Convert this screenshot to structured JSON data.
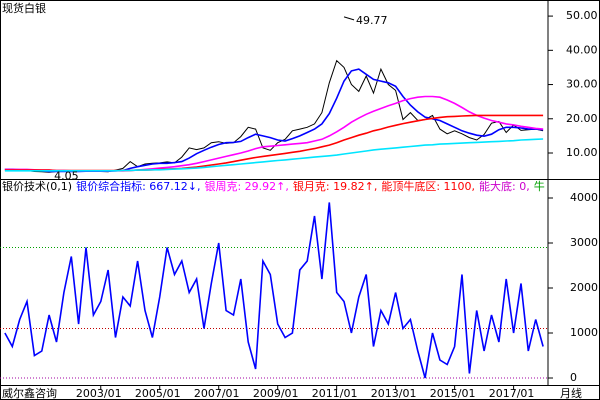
{
  "footer": {
    "source": "威尔鑫咨询",
    "period": "月线"
  },
  "chart_data": [
    {
      "type": "line",
      "title": "现货白银",
      "xlim": [
        "1999/08",
        "2018/03"
      ],
      "ylim": [
        2.7,
        54.7
      ],
      "yticks": [
        {
          "value": 10,
          "label": "10.00"
        },
        {
          "value": 20,
          "label": "20.00"
        },
        {
          "value": 30,
          "label": "30.00"
        },
        {
          "value": 40,
          "label": "40.00"
        },
        {
          "value": 50,
          "label": "50.00"
        }
      ],
      "xticks": [
        "2003/01",
        "2005/01",
        "2007/01",
        "2009/01",
        "2011/01",
        "2013/01",
        "2015/01",
        "2017/01"
      ],
      "x": [
        "1999/10",
        "2000/01",
        "2000/04",
        "2000/07",
        "2000/10",
        "2001/01",
        "2001/04",
        "2001/07",
        "2001/10",
        "2002/01",
        "2002/04",
        "2002/07",
        "2002/10",
        "2003/01",
        "2003/04",
        "2003/07",
        "2003/10",
        "2004/01",
        "2004/04",
        "2004/07",
        "2004/10",
        "2005/01",
        "2005/04",
        "2005/07",
        "2005/10",
        "2006/01",
        "2006/04",
        "2006/07",
        "2006/10",
        "2007/01",
        "2007/04",
        "2007/07",
        "2007/10",
        "2008/01",
        "2008/04",
        "2008/07",
        "2008/10",
        "2009/01",
        "2009/04",
        "2009/07",
        "2009/10",
        "2010/01",
        "2010/04",
        "2010/07",
        "2010/10",
        "2011/01",
        "2011/04",
        "2011/07",
        "2011/10",
        "2012/01",
        "2012/04",
        "2012/07",
        "2012/10",
        "2013/01",
        "2013/04",
        "2013/07",
        "2013/10",
        "2014/01",
        "2014/04",
        "2014/07",
        "2014/10",
        "2015/01",
        "2015/04",
        "2015/07",
        "2015/10",
        "2016/01",
        "2016/04",
        "2016/07",
        "2016/10",
        "2017/01",
        "2017/04",
        "2017/07",
        "2017/10",
        "2018/01"
      ],
      "series": [
        {
          "color": "#000000",
          "values": [
            5.3,
            5.3,
            5.0,
            4.9,
            4.6,
            4.5,
            4.4,
            4.6,
            4.6,
            4.6,
            4.9,
            4.6,
            4.7,
            4.6,
            4.5,
            5.0,
            5.5,
            7.5,
            6.0,
            6.8,
            7.0,
            7.1,
            7.4,
            7.1,
            8.8,
            11.5,
            11.0,
            11.5,
            13.0,
            13.3,
            12.8,
            13.0,
            14.8,
            17.5,
            17.0,
            11.5,
            10.8,
            13.0,
            14.0,
            16.5,
            17.0,
            17.5,
            18.5,
            21.8,
            30.5,
            37.0,
            35.0,
            30.0,
            28.0,
            32.5,
            27.5,
            34.5,
            30.0,
            28.3,
            19.8,
            21.8,
            19.5,
            19.8,
            21.0,
            17.0,
            15.6,
            16.5,
            15.6,
            14.5,
            13.8,
            15.4,
            18.7,
            19.2,
            16.0,
            18.2,
            16.6,
            16.8,
            17.0,
            16.5
          ]
        },
        {
          "color": "#0000ff",
          "values": [
            5.2,
            5.2,
            5.1,
            5.0,
            4.9,
            4.8,
            4.6,
            4.6,
            4.6,
            4.6,
            4.6,
            4.7,
            4.7,
            4.7,
            4.7,
            4.8,
            4.9,
            5.5,
            6.0,
            6.4,
            6.8,
            7.0,
            7.0,
            7.2,
            7.5,
            8.5,
            9.8,
            10.8,
            11.7,
            12.5,
            13.0,
            13.1,
            13.4,
            14.5,
            15.5,
            15.0,
            14.5,
            13.8,
            13.5,
            14.2,
            15.0,
            16.0,
            17.0,
            18.5,
            21.5,
            26.0,
            31.0,
            34.0,
            34.5,
            33.0,
            31.5,
            31.0,
            30.5,
            29.5,
            26.5,
            24.0,
            22.0,
            20.5,
            20.0,
            19.5,
            18.5,
            17.5,
            16.5,
            15.8,
            15.2,
            14.9,
            15.5,
            16.8,
            17.5,
            17.5,
            17.3,
            17.0,
            17.0,
            16.8
          ]
        },
        {
          "color": "#ff00ff",
          "values": [
            5.2,
            5.2,
            5.2,
            5.2,
            5.1,
            5.0,
            5.0,
            4.9,
            4.9,
            4.8,
            4.8,
            4.8,
            4.8,
            4.8,
            4.8,
            4.8,
            4.8,
            4.9,
            5.0,
            5.2,
            5.4,
            5.6,
            5.8,
            6.0,
            6.3,
            6.6,
            7.0,
            7.5,
            8.0,
            8.5,
            9.0,
            9.5,
            10.0,
            10.6,
            11.3,
            11.8,
            12.0,
            12.2,
            12.4,
            12.6,
            12.8,
            13.0,
            13.5,
            14.0,
            15.0,
            16.2,
            17.5,
            19.0,
            20.2,
            21.3,
            22.2,
            23.0,
            23.8,
            24.5,
            25.3,
            25.9,
            26.3,
            26.5,
            26.5,
            26.3,
            25.5,
            24.5,
            23.3,
            22.0,
            21.0,
            20.2,
            19.5,
            19.0,
            18.5,
            18.2,
            17.8,
            17.5,
            17.2,
            17.0
          ]
        },
        {
          "color": "#ff0000",
          "values": [
            5.0,
            5.0,
            5.0,
            5.0,
            5.0,
            5.0,
            5.0,
            4.9,
            4.9,
            4.9,
            4.9,
            4.9,
            4.9,
            4.9,
            4.9,
            4.9,
            4.9,
            4.9,
            5.0,
            5.0,
            5.1,
            5.2,
            5.3,
            5.4,
            5.5,
            5.7,
            5.9,
            6.2,
            6.5,
            6.8,
            7.1,
            7.5,
            7.9,
            8.3,
            8.7,
            9.0,
            9.3,
            9.6,
            9.9,
            10.2,
            10.5,
            10.9,
            11.3,
            11.8,
            12.3,
            13.0,
            13.8,
            14.5,
            15.2,
            15.8,
            16.5,
            17.0,
            17.6,
            18.1,
            18.6,
            19.0,
            19.4,
            19.8,
            20.1,
            20.4,
            20.6,
            20.7,
            20.8,
            20.9,
            21.0,
            21.0,
            21.0,
            21.0,
            21.0,
            21.0,
            21.0,
            21.0,
            21.0,
            21.0
          ]
        },
        {
          "color": "#00e5ff",
          "values": [
            4.8,
            4.8,
            4.8,
            4.8,
            4.8,
            4.8,
            4.8,
            4.8,
            4.8,
            4.8,
            4.8,
            4.8,
            4.8,
            4.8,
            4.8,
            4.8,
            4.9,
            4.9,
            5.0,
            5.0,
            5.1,
            5.1,
            5.2,
            5.3,
            5.4,
            5.5,
            5.6,
            5.8,
            6.0,
            6.2,
            6.4,
            6.6,
            6.8,
            7.0,
            7.2,
            7.4,
            7.6,
            7.8,
            8.0,
            8.2,
            8.4,
            8.6,
            8.8,
            9.0,
            9.2,
            9.4,
            9.7,
            10.0,
            10.3,
            10.6,
            10.9,
            11.1,
            11.3,
            11.5,
            11.7,
            11.9,
            12.1,
            12.3,
            12.4,
            12.6,
            12.7,
            12.8,
            12.9,
            13.0,
            13.1,
            13.2,
            13.3,
            13.4,
            13.5,
            13.6,
            13.8,
            13.9,
            14.0,
            14.1
          ]
        }
      ],
      "annotations": [
        {
          "x": "2011/04",
          "value": 49.77
        },
        {
          "x": "2001/11",
          "value": 4.05
        }
      ]
    },
    {
      "type": "line",
      "subtitle_parts": [
        {
          "text": "银价技术(0,1)",
          "color": "#000000"
        },
        {
          "text": "银价综合指标: 667.12↓,",
          "color": "#0000ff"
        },
        {
          "text": "银周克: 29.92↑,",
          "color": "#ff00ff"
        },
        {
          "text": "银月克: 19.82↑,",
          "color": "#ff0000"
        },
        {
          "text": "能顶牛底区: 1100,",
          "color": "#ff0000"
        },
        {
          "text": "能大底: 0,",
          "color": "#cc00cc"
        },
        {
          "text": "牛",
          "color": "#00a000"
        }
      ],
      "xlim": [
        "1999/08",
        "2018/03"
      ],
      "ylim": [
        -133,
        4089
      ],
      "yticks": [
        0,
        1000,
        2000,
        3000,
        4000
      ],
      "guides": [
        {
          "value": 2900,
          "color": "#00a000"
        },
        {
          "value": 1100,
          "color": "#c00000"
        },
        {
          "value": 0,
          "color": "#a000a0"
        }
      ],
      "x": [
        "1999/10",
        "2000/01",
        "2000/04",
        "2000/07",
        "2000/10",
        "2001/01",
        "2001/04",
        "2001/07",
        "2001/10",
        "2002/01",
        "2002/04",
        "2002/07",
        "2002/10",
        "2003/01",
        "2003/04",
        "2003/07",
        "2003/10",
        "2004/01",
        "2004/04",
        "2004/07",
        "2004/10",
        "2005/01",
        "2005/04",
        "2005/07",
        "2005/10",
        "2006/01",
        "2006/04",
        "2006/07",
        "2006/10",
        "2007/01",
        "2007/04",
        "2007/07",
        "2007/10",
        "2008/01",
        "2008/04",
        "2008/07",
        "2008/10",
        "2009/01",
        "2009/04",
        "2009/07",
        "2009/10",
        "2010/01",
        "2010/04",
        "2010/07",
        "2010/10",
        "2011/01",
        "2011/04",
        "2011/07",
        "2011/10",
        "2012/01",
        "2012/04",
        "2012/07",
        "2012/10",
        "2013/01",
        "2013/04",
        "2013/07",
        "2013/10",
        "2014/01",
        "2014/04",
        "2014/07",
        "2014/10",
        "2015/01",
        "2015/04",
        "2015/07",
        "2015/10",
        "2016/01",
        "2016/04",
        "2016/07",
        "2016/10",
        "2017/01",
        "2017/04",
        "2017/07",
        "2017/10",
        "2018/01"
      ],
      "series": [
        {
          "color": "#0000ff",
          "values": [
            1000,
            700,
            1300,
            1700,
            500,
            600,
            1400,
            800,
            1900,
            2700,
            1200,
            2900,
            1400,
            1700,
            2400,
            900,
            1800,
            1600,
            2600,
            1500,
            900,
            1800,
            2900,
            2300,
            2600,
            1900,
            2200,
            1100,
            2100,
            3000,
            1500,
            1400,
            2200,
            800,
            200,
            2600,
            2300,
            1200,
            900,
            1000,
            2400,
            2600,
            3600,
            2200,
            3900,
            1900,
            1700,
            1000,
            1800,
            2300,
            700,
            1500,
            1200,
            1900,
            1100,
            1300,
            600,
            0,
            1000,
            400,
            300,
            700,
            2300,
            100,
            1500,
            600,
            1400,
            800,
            2200,
            1000,
            2100,
            600,
            1300,
            700
          ]
        }
      ]
    }
  ]
}
